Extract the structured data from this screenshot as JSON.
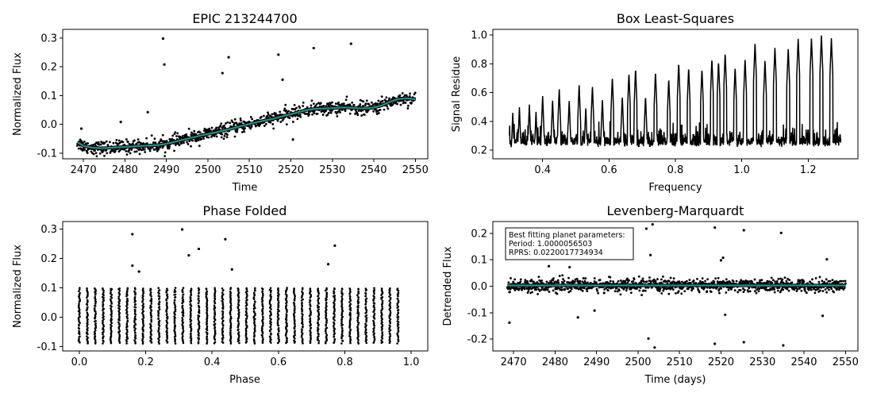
{
  "figure": {
    "background": "#ffffff",
    "marker_color": "#000000",
    "model_color": "#2a8d84",
    "model_edge_color": "#000000"
  },
  "chart_data": [
    {
      "id": "lightcurve",
      "type": "scatter",
      "title": "EPIC 213244700",
      "xlabel": "Time",
      "ylabel": "Normalized Flux",
      "xlim": [
        2465,
        2553
      ],
      "ylim": [
        -0.12,
        0.33
      ],
      "xticks": [
        2470,
        2480,
        2490,
        2500,
        2510,
        2520,
        2530,
        2540,
        2550
      ],
      "yticks": [
        -0.1,
        0.0,
        0.1,
        0.2,
        0.3
      ],
      "ytick_format": "fixed1",
      "trend_series": {
        "name": "",
        "x": [
          2468.5,
          2470,
          2472,
          2474,
          2476,
          2478,
          2480,
          2482,
          2484,
          2486,
          2488,
          2490,
          2492,
          2494,
          2496,
          2498,
          2500,
          2502,
          2504,
          2506,
          2508,
          2510,
          2512,
          2514,
          2516,
          2518,
          2520,
          2522,
          2524,
          2526,
          2528,
          2530,
          2532,
          2534,
          2536,
          2538,
          2540,
          2542,
          2544,
          2546,
          2548,
          2550
        ],
        "y": [
          -0.062,
          -0.075,
          -0.081,
          -0.083,
          -0.082,
          -0.08,
          -0.079,
          -0.077,
          -0.075,
          -0.074,
          -0.072,
          -0.068,
          -0.061,
          -0.054,
          -0.047,
          -0.04,
          -0.034,
          -0.028,
          -0.021,
          -0.014,
          -0.006,
          0.001,
          0.008,
          0.014,
          0.02,
          0.028,
          0.035,
          0.043,
          0.05,
          0.054,
          0.055,
          0.056,
          0.058,
          0.058,
          0.056,
          0.055,
          0.058,
          0.066,
          0.079,
          0.088,
          0.09,
          0.087
        ]
      },
      "scatter_spread": 0.012,
      "outliers": {
        "x": [
          2469.5,
          2479.0,
          2485.5,
          2489.2,
          2489.5,
          2503.5,
          2505.0,
          2517.0,
          2518.0,
          2520.5,
          2525.5,
          2534.5
        ],
        "y": [
          -0.015,
          0.008,
          0.042,
          0.298,
          0.208,
          0.178,
          0.233,
          0.242,
          0.155,
          -0.053,
          0.265,
          0.28
        ]
      }
    },
    {
      "id": "bls",
      "type": "line",
      "title": "Box Least-Squares",
      "xlabel": "Frequency",
      "ylabel": "Signal Residue",
      "xlim": [
        0.25,
        1.35
      ],
      "ylim": [
        0.14,
        1.04
      ],
      "xticks": [
        0.4,
        0.6,
        0.8,
        1.0,
        1.2
      ],
      "yticks": [
        0.2,
        0.4,
        0.6,
        0.8,
        1.0
      ],
      "ytick_format": "fixed1",
      "freq_range": [
        0.3,
        1.3
      ],
      "baseline": 0.27,
      "peaks": {
        "x": [
          0.31,
          0.33,
          0.36,
          0.38,
          0.4,
          0.43,
          0.45,
          0.48,
          0.51,
          0.53,
          0.55,
          0.58,
          0.61,
          0.64,
          0.66,
          0.68,
          0.71,
          0.74,
          0.78,
          0.81,
          0.84,
          0.88,
          0.91,
          0.93,
          0.95,
          0.98,
          1.01,
          1.04,
          1.07,
          1.1,
          1.14,
          1.17,
          1.21,
          1.24,
          1.27
        ],
        "y": [
          0.46,
          0.5,
          0.52,
          0.47,
          0.58,
          0.55,
          0.63,
          0.55,
          0.66,
          0.5,
          0.65,
          0.56,
          0.71,
          0.58,
          0.74,
          0.77,
          0.58,
          0.75,
          0.7,
          0.81,
          0.78,
          0.77,
          0.84,
          0.82,
          0.88,
          0.78,
          0.84,
          0.95,
          0.83,
          0.92,
          0.91,
          0.98,
          0.98,
          1.0,
          0.98
        ]
      }
    },
    {
      "id": "phase",
      "type": "scatter",
      "title": "Phase Folded",
      "xlabel": "Phase",
      "ylabel": "Normalized Flux",
      "xlim": [
        -0.05,
        1.05
      ],
      "ylim": [
        -0.115,
        0.325
      ],
      "xticks": [
        0.0,
        0.2,
        0.4,
        0.6,
        0.8,
        1.0
      ],
      "yticks": [
        -0.1,
        0.0,
        0.1,
        0.2,
        0.3
      ],
      "ytick_format": "fixed1",
      "columns": {
        "count": 41,
        "phase_start": 0.0,
        "phase_step": 0.024,
        "y_min": -0.088,
        "y_max": 0.098
      },
      "outliers": {
        "x": [
          0.16,
          0.16,
          0.18,
          0.31,
          0.33,
          0.36,
          0.44,
          0.46,
          0.75,
          0.77
        ],
        "y": [
          0.282,
          0.175,
          0.155,
          0.298,
          0.21,
          0.232,
          0.265,
          0.162,
          0.18,
          0.243
        ]
      }
    },
    {
      "id": "lm",
      "type": "scatter",
      "title": "Levenberg-Marquardt",
      "xlabel": "Time (days)",
      "ylabel": "Detrended Flux",
      "xlim": [
        2465,
        2553
      ],
      "ylim": [
        -0.245,
        0.245
      ],
      "xticks": [
        2470,
        2480,
        2490,
        2500,
        2510,
        2520,
        2530,
        2540,
        2550
      ],
      "yticks": [
        -0.2,
        -0.1,
        0.0,
        0.1,
        0.2
      ],
      "ytick_format": "fixed1",
      "model_series": {
        "name": "",
        "x": [
          2468.5,
          2550
        ],
        "y": [
          0.003,
          0.003
        ]
      },
      "scatter_spread": 0.012,
      "outliers": {
        "x": [
          2469.0,
          2478.5,
          2483.5,
          2485.5,
          2489.5,
          2502.0,
          2503.5,
          2503.0,
          2504.0,
          2502.5,
          2518.5,
          2520.0,
          2520.5,
          2521.0,
          2525.5,
          2525.5,
          2518.5,
          2534.5,
          2535.0,
          2545.5,
          2544.5
        ],
        "y": [
          -0.138,
          0.076,
          0.072,
          -0.118,
          -0.092,
          0.218,
          0.234,
          0.118,
          -0.232,
          -0.198,
          0.222,
          0.098,
          0.108,
          -0.108,
          0.212,
          -0.212,
          -0.218,
          0.202,
          -0.224,
          0.102,
          -0.112
        ]
      },
      "annotation": {
        "lines": [
          "Best fitting planet parameters:",
          "Period: 1.0000056503",
          "RPRS: 0.0220017734934"
        ]
      }
    }
  ]
}
